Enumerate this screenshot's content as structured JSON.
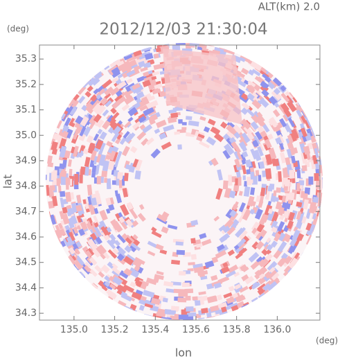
{
  "chart_data": {
    "type": "radar-image",
    "title": "2012/12/03 21:30:04",
    "annotation": "ALT(km) 2.0",
    "y_unit": "(deg)",
    "x_unit": "(deg)",
    "x_label": "lon",
    "y_label": "lat",
    "xlim": [
      134.83,
      136.21
    ],
    "ylim": [
      34.273,
      35.355
    ],
    "xticks": [
      {
        "value": 135.0,
        "label": "135.0"
      },
      {
        "value": 135.2,
        "label": "135.2"
      },
      {
        "value": 135.4,
        "label": "135.4"
      },
      {
        "value": 135.6,
        "label": "135.6"
      },
      {
        "value": 135.8,
        "label": "135.8"
      },
      {
        "value": 136.0,
        "label": "136.0"
      }
    ],
    "yticks": [
      {
        "value": 34.3,
        "label": "34.3"
      },
      {
        "value": 34.4,
        "label": "34.4"
      },
      {
        "value": 34.5,
        "label": "34.5"
      },
      {
        "value": 34.6,
        "label": "34.6"
      },
      {
        "value": 34.7,
        "label": "34.7"
      },
      {
        "value": 34.8,
        "label": "34.8"
      },
      {
        "value": 34.9,
        "label": "34.9"
      },
      {
        "value": 35.0,
        "label": "35.0"
      },
      {
        "value": 35.1,
        "label": "35.1"
      },
      {
        "value": 35.2,
        "label": "35.2"
      },
      {
        "value": 35.3,
        "label": "35.3"
      }
    ]
  }
}
